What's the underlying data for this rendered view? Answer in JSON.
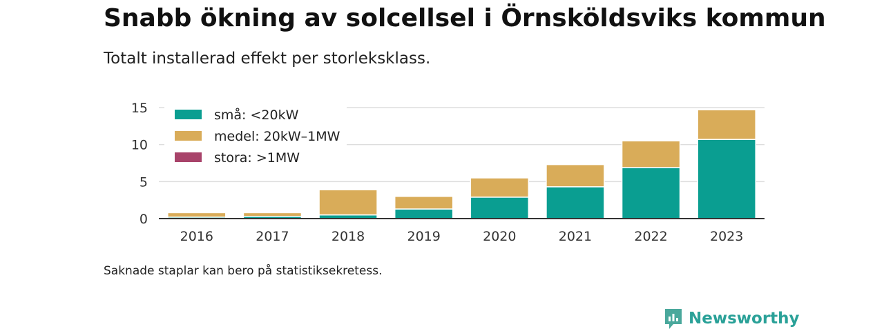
{
  "title": "Snabb ökning av solcellsel i Örnsköldsviks kommun",
  "subtitle": "Totalt installerad effekt per storleksklass.",
  "note": "Saknade staplar kan bero på statistiksekretess.",
  "brand": {
    "name": "Newsworthy",
    "color": "#1a9e8f"
  },
  "colors": {
    "small": "#0a9e91",
    "medium": "#d9ac59",
    "large": "#a8436a",
    "grid": "#dddddd",
    "axis": "#333333"
  },
  "chart_data": {
    "type": "bar",
    "stacked": true,
    "categories": [
      "2016",
      "2017",
      "2018",
      "2019",
      "2020",
      "2021",
      "2022",
      "2023"
    ],
    "series": [
      {
        "name": "små: <20kW",
        "color": "#0a9e91",
        "values": [
          0.2,
          0.3,
          0.5,
          1.3,
          2.9,
          4.3,
          6.9,
          10.7
        ]
      },
      {
        "name": "medel: 20kW–1MW",
        "color": "#d9ac59",
        "values": [
          0.6,
          0.5,
          3.4,
          1.7,
          2.6,
          3.0,
          3.6,
          4.0
        ]
      },
      {
        "name": "stora: >1MW",
        "color": "#a8436a",
        "values": [
          0,
          0,
          0,
          0,
          0,
          0,
          0,
          0
        ]
      }
    ],
    "y_ticks": [
      0,
      5,
      10,
      15
    ],
    "ylim": [
      0,
      15
    ],
    "grid": true,
    "legend_position": "top-left"
  }
}
